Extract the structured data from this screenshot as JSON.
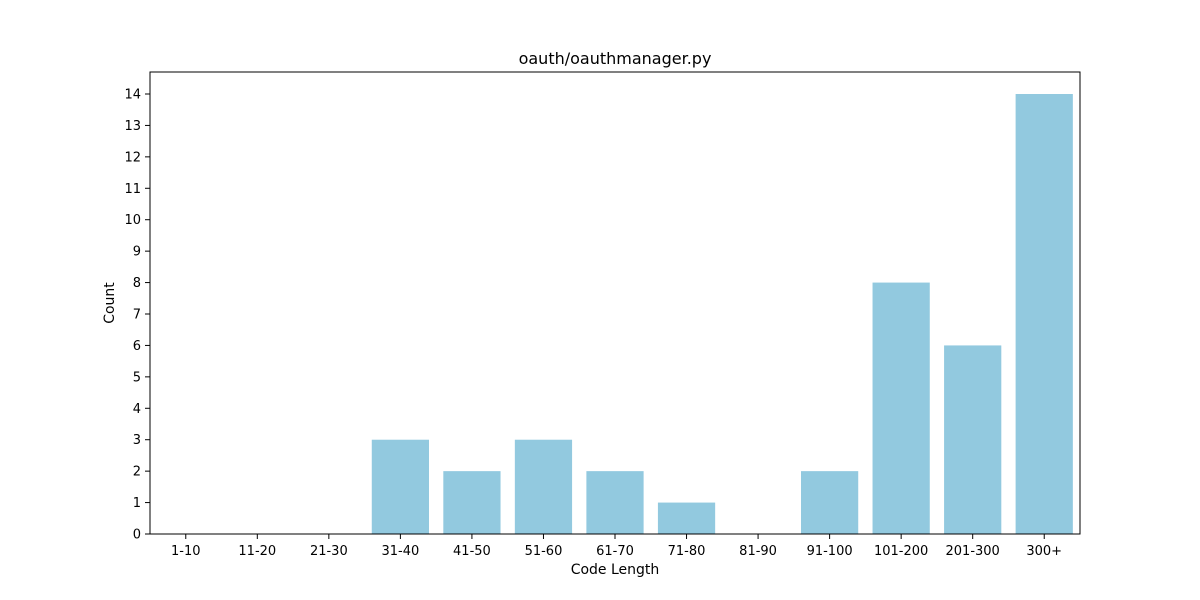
{
  "chart_data": {
    "type": "bar",
    "title": "oauth/oauthmanager.py",
    "xlabel": "Code Length",
    "ylabel": "Count",
    "categories": [
      "1-10",
      "11-20",
      "21-30",
      "31-40",
      "41-50",
      "51-60",
      "61-70",
      "71-80",
      "81-90",
      "91-100",
      "101-200",
      "201-300",
      "300+"
    ],
    "values": [
      0,
      0,
      0,
      3,
      2,
      3,
      2,
      1,
      0,
      2,
      8,
      6,
      14
    ],
    "yticks": [
      "0",
      "1",
      "2",
      "3",
      "4",
      "5",
      "6",
      "7",
      "8",
      "9",
      "10",
      "11",
      "12",
      "13",
      "14"
    ],
    "ylim": [
      0,
      14.7
    ],
    "bar_color": "#92c9df",
    "grid": false,
    "legend": "none"
  }
}
